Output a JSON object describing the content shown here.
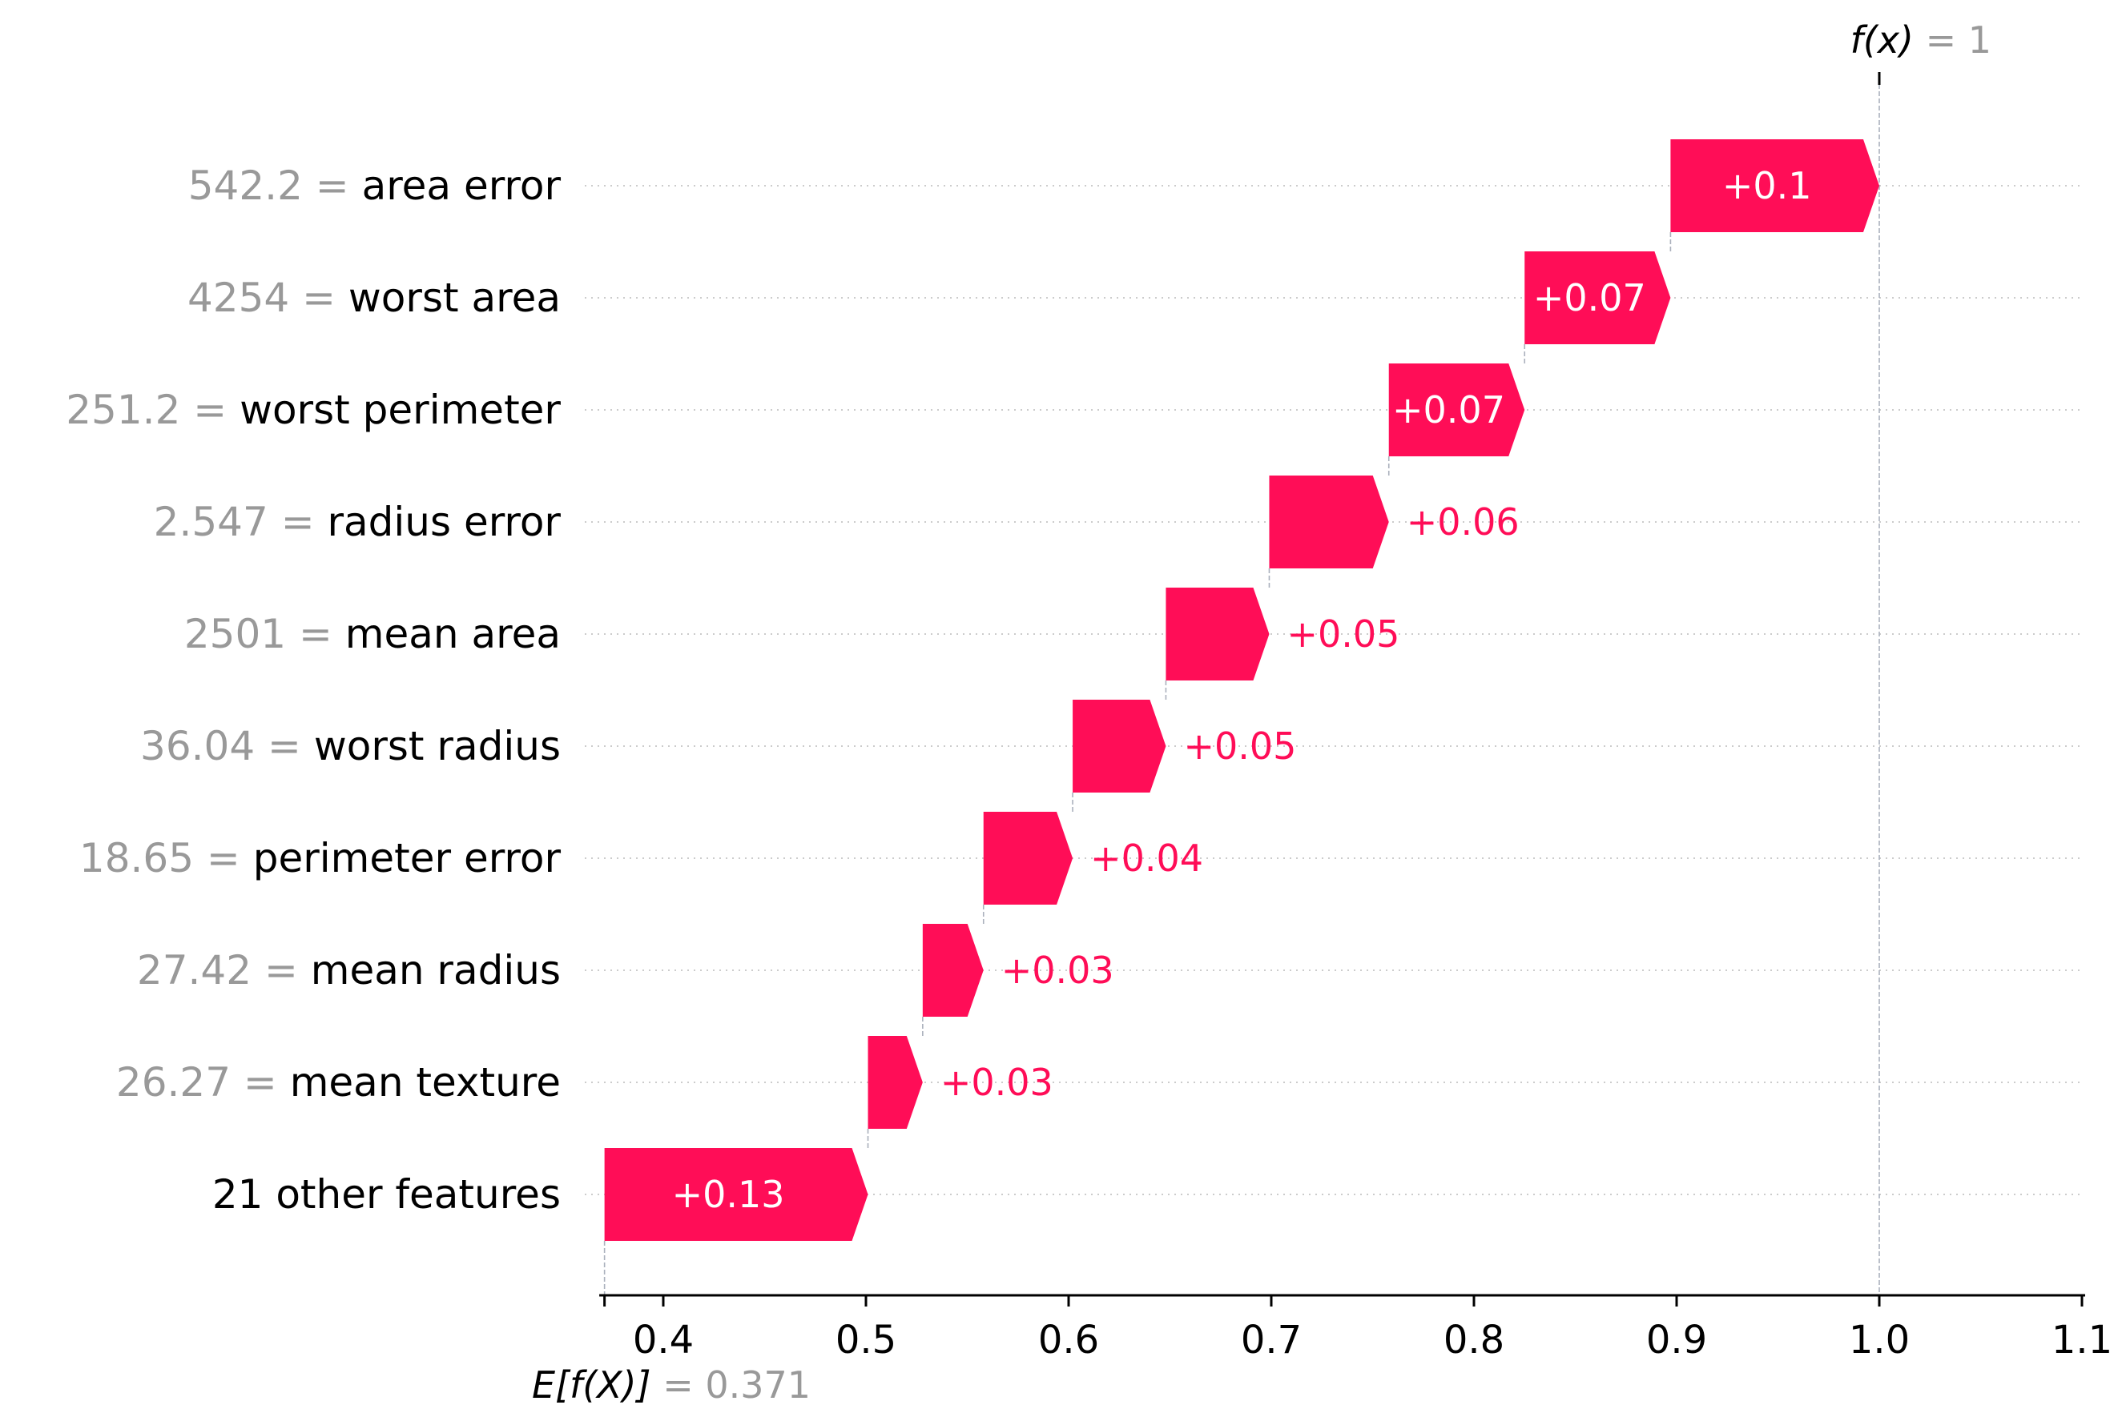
{
  "chart_data": {
    "type": "waterfall",
    "base_value_label": "E[f(X)]",
    "base_value_text": "= 0.371",
    "base_value": 0.371,
    "output_value_label": "f(x)",
    "output_value_text": "= 1",
    "output_value": 1,
    "xlim": [
      0.37,
      1.1
    ],
    "xticks": [
      0.4,
      0.5,
      0.6,
      0.7,
      0.8,
      0.9,
      1.0,
      1.1
    ],
    "xtick_labels": [
      "0.4",
      "0.5",
      "0.6",
      "0.7",
      "0.8",
      "0.9",
      "1.0",
      "1.1"
    ],
    "bars": [
      {
        "value_text": "542.2 =",
        "feature": "area error",
        "start": 0.897,
        "end": 1.0,
        "label": "+0.1"
      },
      {
        "value_text": "4254 =",
        "feature": "worst area",
        "start": 0.825,
        "end": 0.897,
        "label": "+0.07"
      },
      {
        "value_text": "251.2 =",
        "feature": "worst perimeter",
        "start": 0.758,
        "end": 0.825,
        "label": "+0.07"
      },
      {
        "value_text": "2.547 =",
        "feature": "radius error",
        "start": 0.699,
        "end": 0.758,
        "label": "+0.06"
      },
      {
        "value_text": "2501 =",
        "feature": "mean area",
        "start": 0.648,
        "end": 0.699,
        "label": "+0.05"
      },
      {
        "value_text": "36.04 =",
        "feature": "worst radius",
        "start": 0.602,
        "end": 0.648,
        "label": "+0.05"
      },
      {
        "value_text": "18.65 =",
        "feature": "perimeter error",
        "start": 0.558,
        "end": 0.602,
        "label": "+0.04"
      },
      {
        "value_text": "27.42 =",
        "feature": "mean radius",
        "start": 0.528,
        "end": 0.558,
        "label": "+0.03"
      },
      {
        "value_text": "26.27 =",
        "feature": "mean texture",
        "start": 0.501,
        "end": 0.528,
        "label": "+0.03"
      },
      {
        "value_text": "",
        "feature": "21 other features",
        "start": 0.371,
        "end": 0.501,
        "label": "+0.13"
      }
    ],
    "colors": {
      "positive": "#ff0d57"
    }
  }
}
